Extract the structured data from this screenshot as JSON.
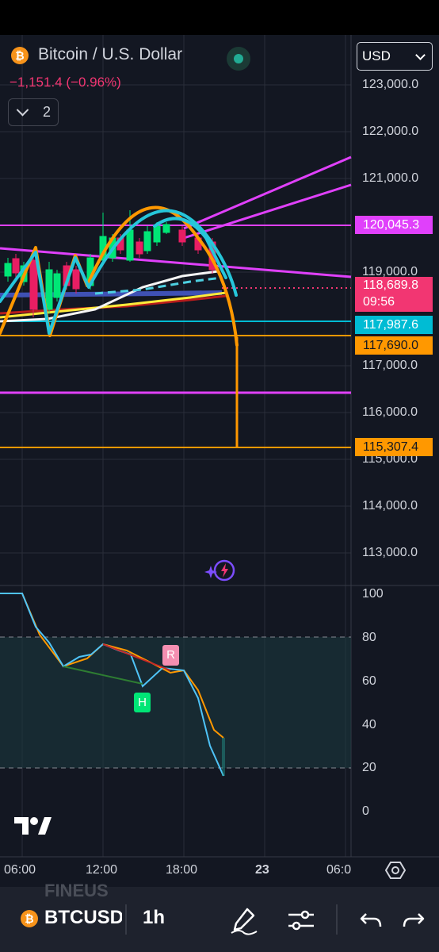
{
  "header": {
    "symbol_icon": "bitcoin-icon",
    "title": "Bitcoin / U.S. Dollar",
    "change": "−1,151.4 (−0.96%)",
    "market_status_icon": "market-open-dot-icon",
    "currency": "USD",
    "indicators_toggle_count": "2"
  },
  "price_axis": {
    "labels": [
      "123,000.0",
      "122,000.0",
      "121,000.0",
      "119,000.0",
      "117,000.0",
      "116,000.0",
      "115,000.0",
      "114,000.0",
      "113,000.0"
    ]
  },
  "price_tags": [
    {
      "text": "120,045.3",
      "color": "#e040fb"
    },
    {
      "text": "118,689.8",
      "color": "#f23672"
    },
    {
      "text": "09:56",
      "color": "#f23672"
    },
    {
      "text": "117,987.6",
      "color": "#00bcd4"
    },
    {
      "text": "117,690.0",
      "color": "#ff9800"
    },
    {
      "text": "115,307.4",
      "color": "#ff9800"
    }
  ],
  "oscillator": {
    "axis_labels": [
      "100",
      "80",
      "60",
      "40",
      "20",
      "0"
    ],
    "markers": [
      {
        "text": "H",
        "color": "#00e676"
      },
      {
        "text": "R",
        "color": "#f48fb1"
      }
    ]
  },
  "time_axis": {
    "labels": [
      "06:00",
      "12:00",
      "18:00",
      "23",
      "06:0"
    ]
  },
  "logo": "tradingview-logo",
  "bottom_toolbar": {
    "symbol": "BTCUSD",
    "interval": "1h",
    "ghost_text": "FINEUS",
    "icons": [
      "draw-pen-icon",
      "settings-sliders-icon",
      "undo-icon",
      "redo-icon"
    ]
  }
}
